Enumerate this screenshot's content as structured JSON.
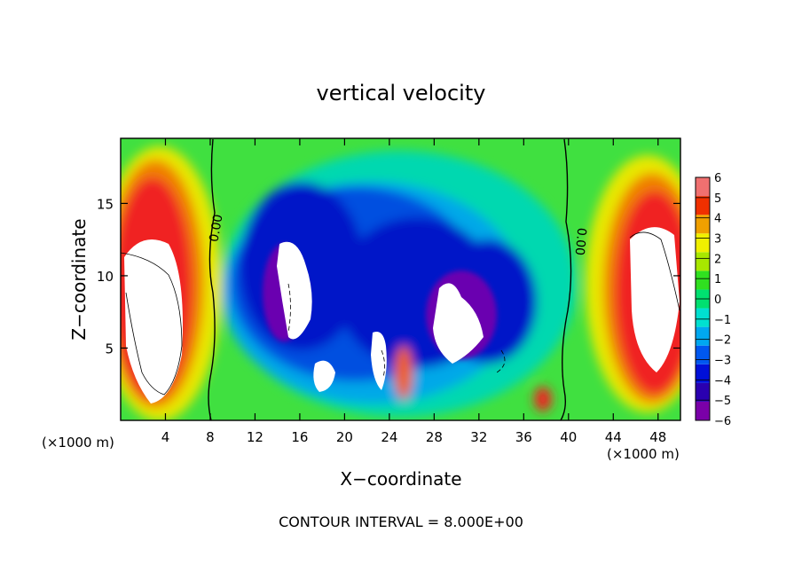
{
  "chart_data": {
    "type": "heatmap",
    "title": "vertical velocity",
    "xlabel": "X−coordinate",
    "ylabel": "Z−coordinate",
    "x_unit_left": "(×1000 m)",
    "x_unit_right": "(×1000 m)",
    "xlim": [
      0,
      50
    ],
    "ylim": [
      0,
      19.5
    ],
    "x_ticks": [
      4,
      8,
      12,
      16,
      20,
      24,
      28,
      32,
      36,
      40,
      44,
      48
    ],
    "x_tick_labels": [
      "4",
      "8",
      "12",
      "16",
      "20",
      "24",
      "28",
      "32",
      "36",
      "40",
      "44",
      "48"
    ],
    "y_ticks": [
      5,
      10,
      15
    ],
    "y_tick_labels": [
      "5",
      "10",
      "15"
    ],
    "colorbar": {
      "range": [
        -6,
        6
      ],
      "ticks": [
        6,
        5,
        4,
        3,
        2,
        1,
        0,
        -1,
        -2,
        -3,
        -4,
        -5,
        -6
      ],
      "tick_labels": [
        "6",
        "5",
        "4",
        "3",
        "2",
        "1",
        "0",
        "−1",
        "−2",
        "−3",
        "−4",
        "−5",
        "−6"
      ],
      "colors": [
        "#7a00a8",
        "#2a00b0",
        "#0010d8",
        "#0058f0",
        "#00a8f0",
        "#00e0d0",
        "#00e070",
        "#30e020",
        "#a8e800",
        "#f0f000",
        "#f0a000",
        "#f03000",
        "#f07070"
      ]
    },
    "contour_labels": [
      "0.00",
      "0.00"
    ],
    "footer": "CONTOUR INTERVAL = 8.000E+00"
  }
}
